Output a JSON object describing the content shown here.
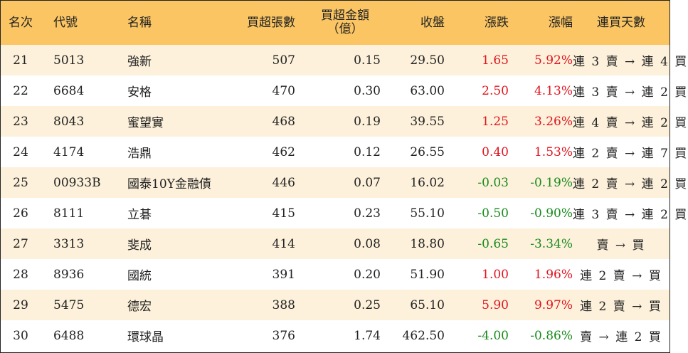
{
  "header": {
    "rank": "名次",
    "code": "代號",
    "name": "名稱",
    "net_buy_volume": "買超張數",
    "net_buy_amount_line1": "買超金額",
    "net_buy_amount_line2": "（億）",
    "close": "收盤",
    "change": "漲跌",
    "change_pct": "漲幅",
    "consecutive_days": "連買天數"
  },
  "colors": {
    "header_bg": "#fbc563",
    "odd_row_bg": "#fdf1db",
    "up": "#e0141e",
    "down": "#178a1c"
  },
  "rows": [
    {
      "rank": "21",
      "code": "5013",
      "name": "強新",
      "volume": "507",
      "amount": "0.15",
      "close": "29.50",
      "change": "1.65",
      "pct": "5.92%",
      "days": "連 3 賣 → 連 4 買",
      "dir": "up"
    },
    {
      "rank": "22",
      "code": "6684",
      "name": "安格",
      "volume": "470",
      "amount": "0.30",
      "close": "63.00",
      "change": "2.50",
      "pct": "4.13%",
      "days": "連 3 賣 → 連 2 買",
      "dir": "up"
    },
    {
      "rank": "23",
      "code": "8043",
      "name": "蜜望實",
      "volume": "468",
      "amount": "0.19",
      "close": "39.55",
      "change": "1.25",
      "pct": "3.26%",
      "days": "連 4 賣 → 連 2 買",
      "dir": "up"
    },
    {
      "rank": "24",
      "code": "4174",
      "name": "浩鼎",
      "volume": "462",
      "amount": "0.12",
      "close": "26.55",
      "change": "0.40",
      "pct": "1.53%",
      "days": "連 2 賣 → 連 7 買",
      "dir": "up"
    },
    {
      "rank": "25",
      "code": "00933B",
      "name": "國泰10Y金融債",
      "volume": "446",
      "amount": "0.07",
      "close": "16.02",
      "change": "-0.03",
      "pct": "-0.19%",
      "days": "連 2 賣 → 連 2 買",
      "dir": "down"
    },
    {
      "rank": "26",
      "code": "8111",
      "name": "立碁",
      "volume": "415",
      "amount": "0.23",
      "close": "55.10",
      "change": "-0.50",
      "pct": "-0.90%",
      "days": "連 3 賣 → 連 2 買",
      "dir": "down"
    },
    {
      "rank": "27",
      "code": "3313",
      "name": "斐成",
      "volume": "414",
      "amount": "0.08",
      "close": "18.80",
      "change": "-0.65",
      "pct": "-3.34%",
      "days": "賣 → 買",
      "dir": "down"
    },
    {
      "rank": "28",
      "code": "8936",
      "name": "國統",
      "volume": "391",
      "amount": "0.20",
      "close": "51.90",
      "change": "1.00",
      "pct": "1.96%",
      "days": "連 2 賣 → 買",
      "dir": "up"
    },
    {
      "rank": "29",
      "code": "5475",
      "name": "德宏",
      "volume": "388",
      "amount": "0.25",
      "close": "65.10",
      "change": "5.90",
      "pct": "9.97%",
      "days": "連 2 賣 → 買",
      "dir": "up"
    },
    {
      "rank": "30",
      "code": "6488",
      "name": "環球晶",
      "volume": "376",
      "amount": "1.74",
      "close": "462.50",
      "change": "-4.00",
      "pct": "-0.86%",
      "days": "賣 → 連 2 買",
      "dir": "down"
    }
  ]
}
